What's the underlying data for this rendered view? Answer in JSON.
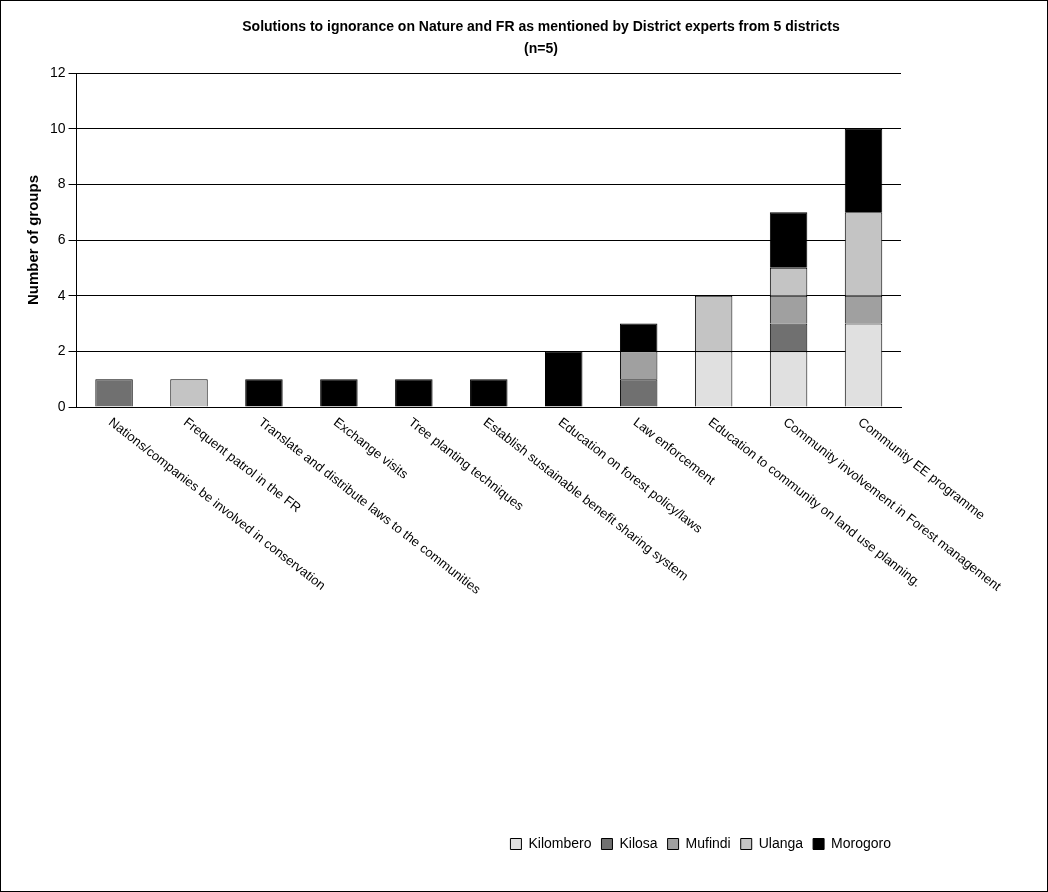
{
  "chart_data": {
    "type": "bar",
    "title": "Solutions to ignorance on Nature and FR as mentioned by District experts from 5 districts (n=5)",
    "ylabel": "Number of groups",
    "categories": [
      "Nations/companies be involved in conservation",
      "Frequent patrol in the FR",
      "Translate and distribute laws to the communities",
      "Exchange visits",
      "Tree planting techniques",
      "Establish sustainable benefit sharing system",
      "Education on forest policy/laws",
      "Law enforcement",
      "Education to community on land use planning.",
      "Community involvement in Forest management",
      "Community EE programme"
    ],
    "stacked": true,
    "series": [
      {
        "name": "Kilombero",
        "color": "#e0e0e0",
        "values": [
          0,
          0,
          0,
          0,
          0,
          0,
          0,
          0,
          2,
          2,
          3
        ]
      },
      {
        "name": "Kilosa",
        "color": "#707070",
        "values": [
          1,
          0,
          0,
          0,
          0,
          0,
          0,
          1,
          0,
          1,
          0
        ]
      },
      {
        "name": "Mufindi",
        "color": "#a0a0a0",
        "values": [
          0,
          0,
          0,
          0,
          0,
          0,
          0,
          1,
          0,
          1,
          1
        ]
      },
      {
        "name": "Ulanga",
        "color": "#c4c4c4",
        "values": [
          0,
          1,
          0,
          0,
          0,
          0,
          0,
          0,
          2,
          1,
          3
        ]
      },
      {
        "name": "Morogoro",
        "color": "#000000",
        "values": [
          0,
          0,
          1,
          1,
          1,
          1,
          2,
          1,
          0,
          2,
          3
        ]
      }
    ],
    "ylim": [
      0,
      12
    ],
    "yticks": [
      0,
      2,
      4,
      6,
      8,
      10,
      12
    ],
    "grid": "y",
    "legend": "bottom right"
  }
}
